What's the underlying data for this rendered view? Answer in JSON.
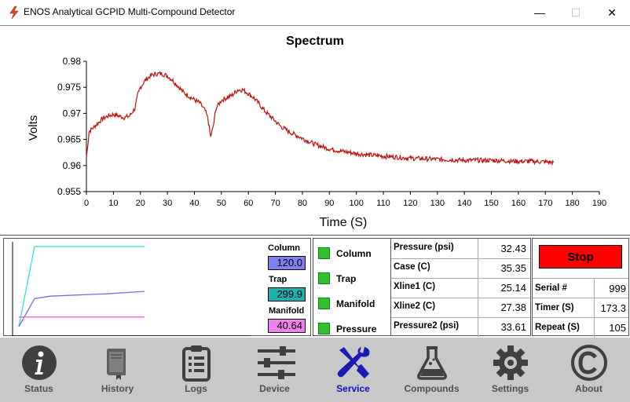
{
  "window": {
    "title": "ENOS Analytical GCPID Multi-Compound Detector",
    "minimize": "—",
    "maximize": "☐",
    "close": "✕"
  },
  "chart_data": {
    "type": "line",
    "title": "Spectrum",
    "xlabel": "Time (S)",
    "ylabel": "Volts",
    "xlim": [
      0,
      190
    ],
    "ylim": [
      0.955,
      0.98
    ],
    "xticks": [
      0,
      10,
      20,
      30,
      40,
      50,
      60,
      70,
      80,
      90,
      100,
      110,
      120,
      130,
      140,
      150,
      160,
      170,
      180,
      190
    ],
    "yticks": [
      0.955,
      0.96,
      0.965,
      0.97,
      0.975,
      0.98
    ],
    "ytick_labels": [
      "0.955",
      "0.96",
      "0.965",
      "0.97",
      "0.975",
      "0.98"
    ],
    "grid": false,
    "color": "#c01010",
    "series": [
      {
        "x": [
          0,
          1,
          2,
          4,
          6,
          8,
          10,
          12,
          14,
          16,
          18,
          19,
          20,
          22,
          24,
          26,
          28,
          30,
          32,
          34,
          36,
          38,
          40,
          42,
          44,
          45,
          46,
          47,
          48,
          50,
          52,
          54,
          56,
          58,
          60,
          62,
          64,
          66,
          68,
          70,
          72,
          75,
          80,
          85,
          90,
          95,
          100,
          105,
          110,
          115,
          120,
          125,
          130,
          135,
          140,
          145,
          150,
          155,
          160,
          165,
          170,
          173
        ],
        "y": [
          0.9615,
          0.9665,
          0.967,
          0.968,
          0.969,
          0.9695,
          0.9698,
          0.9695,
          0.9692,
          0.9695,
          0.971,
          0.9735,
          0.975,
          0.9765,
          0.9773,
          0.9776,
          0.9776,
          0.9772,
          0.9763,
          0.9752,
          0.974,
          0.9733,
          0.9726,
          0.972,
          0.9705,
          0.969,
          0.9655,
          0.9675,
          0.971,
          0.9725,
          0.973,
          0.9735,
          0.9745,
          0.9745,
          0.9738,
          0.973,
          0.9718,
          0.9705,
          0.9695,
          0.9685,
          0.9675,
          0.9665,
          0.9652,
          0.964,
          0.9632,
          0.9627,
          0.9623,
          0.962,
          0.9618,
          0.9616,
          0.9614,
          0.9613,
          0.9612,
          0.9611,
          0.961,
          0.961,
          0.961,
          0.9609,
          0.9608,
          0.9608,
          0.9607,
          0.9606
        ]
      }
    ]
  },
  "mini_chart": {
    "series": [
      {
        "color": "#30e0e0",
        "values": [
          0,
          1,
          1,
          1,
          1
        ]
      },
      {
        "color": "#7070e0",
        "values": [
          0,
          0.35,
          0.38,
          0.41,
          0.44
        ]
      },
      {
        "color": "#e060e0",
        "values": [
          0.12,
          0.12,
          0.12,
          0.12,
          0.12
        ]
      }
    ]
  },
  "heaters": [
    {
      "label": "Column",
      "value": "120.0",
      "color": "#8080f0"
    },
    {
      "label": "Trap",
      "value": "299.9",
      "color": "#20b0b0"
    },
    {
      "label": "Manifold",
      "value": "40.64",
      "color": "#f080f0"
    }
  ],
  "status": [
    {
      "label": "Column"
    },
    {
      "label": "Trap"
    },
    {
      "label": "Manifold"
    },
    {
      "label": "Pressure"
    }
  ],
  "readings": [
    {
      "label": "Pressure (psi)",
      "value": "32.43"
    },
    {
      "label": "Case (C)",
      "value": "35.35"
    },
    {
      "label": "Xline1 (C)",
      "value": "25.14"
    },
    {
      "label": "Xline2 (C)",
      "value": "27.38"
    },
    {
      "label": "Pressure2 (psi)",
      "value": "33.61"
    }
  ],
  "controls": {
    "stop_label": "Stop",
    "rows": [
      {
        "label": "Serial #",
        "value": "999"
      },
      {
        "label": "Timer (S)",
        "value": "173.3"
      },
      {
        "label": "Repeat (S)",
        "value": "105"
      }
    ]
  },
  "nav": [
    {
      "label": "Status",
      "icon": "info-icon"
    },
    {
      "label": "History",
      "icon": "book-icon"
    },
    {
      "label": "Logs",
      "icon": "clipboard-icon"
    },
    {
      "label": "Device",
      "icon": "sliders-icon"
    },
    {
      "label": "Service",
      "icon": "tools-icon",
      "active": true
    },
    {
      "label": "Compounds",
      "icon": "flask-icon"
    },
    {
      "label": "Settings",
      "icon": "gear-icon"
    },
    {
      "label": "About",
      "icon": "copyright-icon"
    }
  ]
}
